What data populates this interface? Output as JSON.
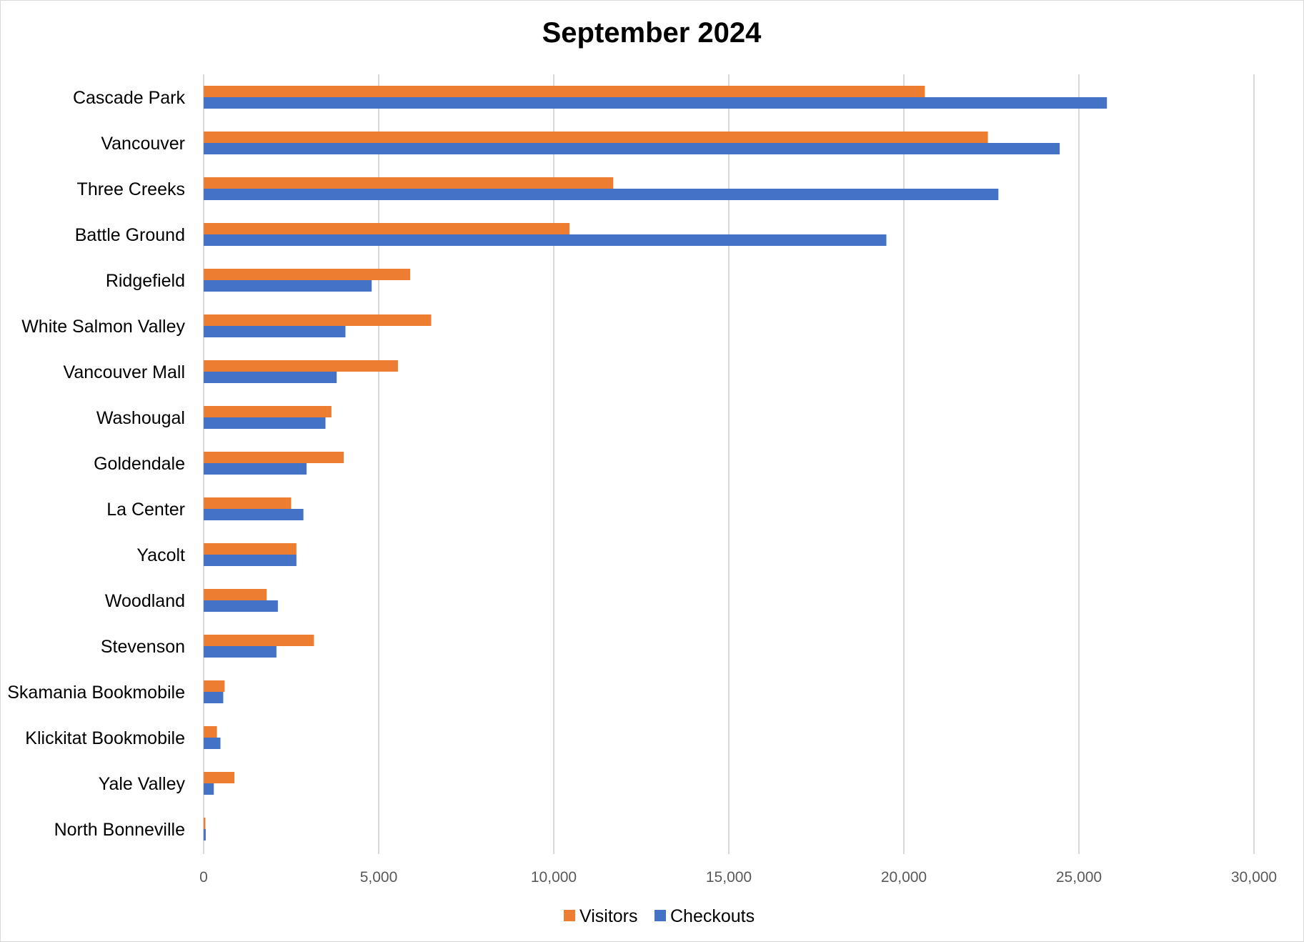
{
  "chart_data": {
    "type": "bar",
    "orientation": "horizontal",
    "title": "September 2024",
    "xlabel": "",
    "ylabel": "",
    "xlim": [
      0,
      30000
    ],
    "x_ticks": [
      0,
      5000,
      10000,
      15000,
      20000,
      25000,
      30000
    ],
    "x_tick_labels": [
      "0",
      "5,000",
      "10,000",
      "15,000",
      "20,000",
      "25,000",
      "30,000"
    ],
    "grid": "vertical",
    "legend_position": "bottom",
    "categories": [
      "Cascade Park",
      "Vancouver",
      "Three Creeks",
      "Battle Ground",
      "Ridgefield",
      "White Salmon Valley",
      "Vancouver Mall",
      "Washougal",
      "Goldendale",
      "La Center",
      "Yacolt",
      "Woodland",
      "Stevenson",
      "Skamania Bookmobile",
      "Klickitat Bookmobile",
      "Yale Valley",
      "North Bonneville"
    ],
    "series": [
      {
        "name": "Visitors",
        "color": "#ED7D31",
        "values": [
          20600,
          22400,
          11700,
          10450,
          5900,
          6500,
          5550,
          3650,
          4000,
          2500,
          2650,
          1800,
          3150,
          600,
          380,
          880,
          50
        ]
      },
      {
        "name": "Checkouts",
        "color": "#4472C4",
        "values": [
          25800,
          24450,
          22700,
          19500,
          4800,
          4050,
          3800,
          3480,
          2940,
          2850,
          2650,
          2120,
          2080,
          560,
          480,
          290,
          60
        ]
      }
    ]
  }
}
